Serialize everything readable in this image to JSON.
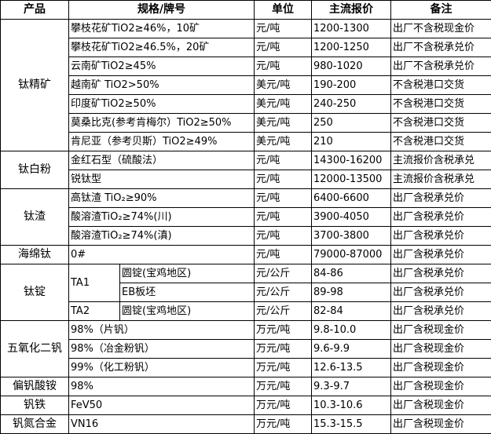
{
  "headers": [
    "产品",
    "规格/牌号",
    "单位",
    "主流报价",
    "备注"
  ],
  "groups": [
    {
      "product": "钛精矿",
      "rows": [
        {
          "spec": "攀枝花矿TiO2≥46%，10矿",
          "unit": "元/吨",
          "price": "1200-1300",
          "note": "出厂不含税现金价"
        },
        {
          "spec": "攀枝花矿TiO2≥46.5%，20矿",
          "unit": "元/吨",
          "price": "1200-1250",
          "note": "出厂不含税承兑价"
        },
        {
          "spec": "云南矿TiO2≥45%",
          "unit": "元/吨",
          "price": "980-1020",
          "note": "出厂不含税承兑价"
        },
        {
          "spec": "越南矿 TiO2>50%",
          "unit": "美元/吨",
          "price": "190-200",
          "note": "不含税港口交货"
        },
        {
          "spec": "印度矿TiO2≥50%",
          "unit": "美元/吨",
          "price": "240-250",
          "note": "不含税港口交货"
        },
        {
          "spec": "莫桑比克(参考肯梅尔）TiO2≥50%",
          "unit": "美元/吨",
          "price": "250",
          "note": "不含税港口交货"
        },
        {
          "spec": "肯尼亚（参考贝斯）TiO2≥49%",
          "unit": "美元/吨",
          "price": "210",
          "note": "不含税港口交货"
        }
      ]
    },
    {
      "product": "钛白粉",
      "rows": [
        {
          "spec": "金红石型（硫酸法）",
          "unit": "元/吨",
          "price": "14300-16200",
          "note": "主流报价含税承兑"
        },
        {
          "spec": "锐钛型",
          "unit": "元/吨",
          "price": "12000-13500",
          "note": "主流报价含税承兑"
        }
      ]
    },
    {
      "product": "钛渣",
      "rows": [
        {
          "spec": "高钛渣 TiO₂≥90%",
          "unit": "元/吨",
          "price": "6400-6600",
          "note": "出厂含税承兑价"
        },
        {
          "spec": "酸溶渣TiO₂≥74%(川)",
          "unit": "元/吨",
          "price": "3900-4050",
          "note": "出厂含税承兑价"
        },
        {
          "spec": "酸溶渣TiO₂≥74%(滇)",
          "unit": "元/吨",
          "price": "3700-3800",
          "note": "出厂含税承兑价"
        }
      ]
    },
    {
      "product": "海绵钛",
      "rows": [
        {
          "spec": "0#",
          "unit": "元/吨",
          "price": "79000-87000",
          "note": "出厂含税承兑价"
        }
      ]
    },
    {
      "product": "钛锭",
      "subgroups": [
        {
          "grade": "TA1",
          "rows": [
            {
              "spec": "圆锭(宝鸡地区)",
              "unit": "元/公斤",
              "price": "84-86",
              "note": "出厂含税承兑价"
            },
            {
              "spec": "EB板坯",
              "unit": "元/公斤",
              "price": "89-98",
              "note": "出厂含税承兑价"
            }
          ]
        },
        {
          "grade": "TA2",
          "rows": [
            {
              "spec": "圆锭(宝鸡地区)",
              "unit": "元/公斤",
              "price": "82-84",
              "note": "出厂含税承兑价"
            }
          ]
        }
      ]
    },
    {
      "product": "五氧化二钒",
      "rows": [
        {
          "spec": "98%（片钒）",
          "unit": "万元/吨",
          "price": "9.8-10.0",
          "note": "出厂含税现金价"
        },
        {
          "spec": "98%（冶金粉钒）",
          "unit": "万元/吨",
          "price": "9.6-9.9",
          "note": "出厂含税现金价"
        },
        {
          "spec": "99%（化工粉钒）",
          "unit": "万元/吨",
          "price": "12.6-13.5",
          "note": "出厂含税现金价"
        }
      ]
    },
    {
      "product": "偏钒酸铵",
      "rows": [
        {
          "spec": "98%",
          "unit": "万元/吨",
          "price": "9.3-9.7",
          "note": "出厂含税现金价"
        }
      ]
    },
    {
      "product": "钒铁",
      "rows": [
        {
          "spec": "FeV50",
          "unit": "万元/吨",
          "price": "10.3-10.6",
          "note": "出厂含税现金价"
        }
      ]
    },
    {
      "product": "钒氮合金",
      "rows": [
        {
          "spec": "VN16",
          "unit": "万元/吨",
          "price": "15.3-15.5",
          "note": "出厂含税现金价"
        }
      ]
    }
  ]
}
